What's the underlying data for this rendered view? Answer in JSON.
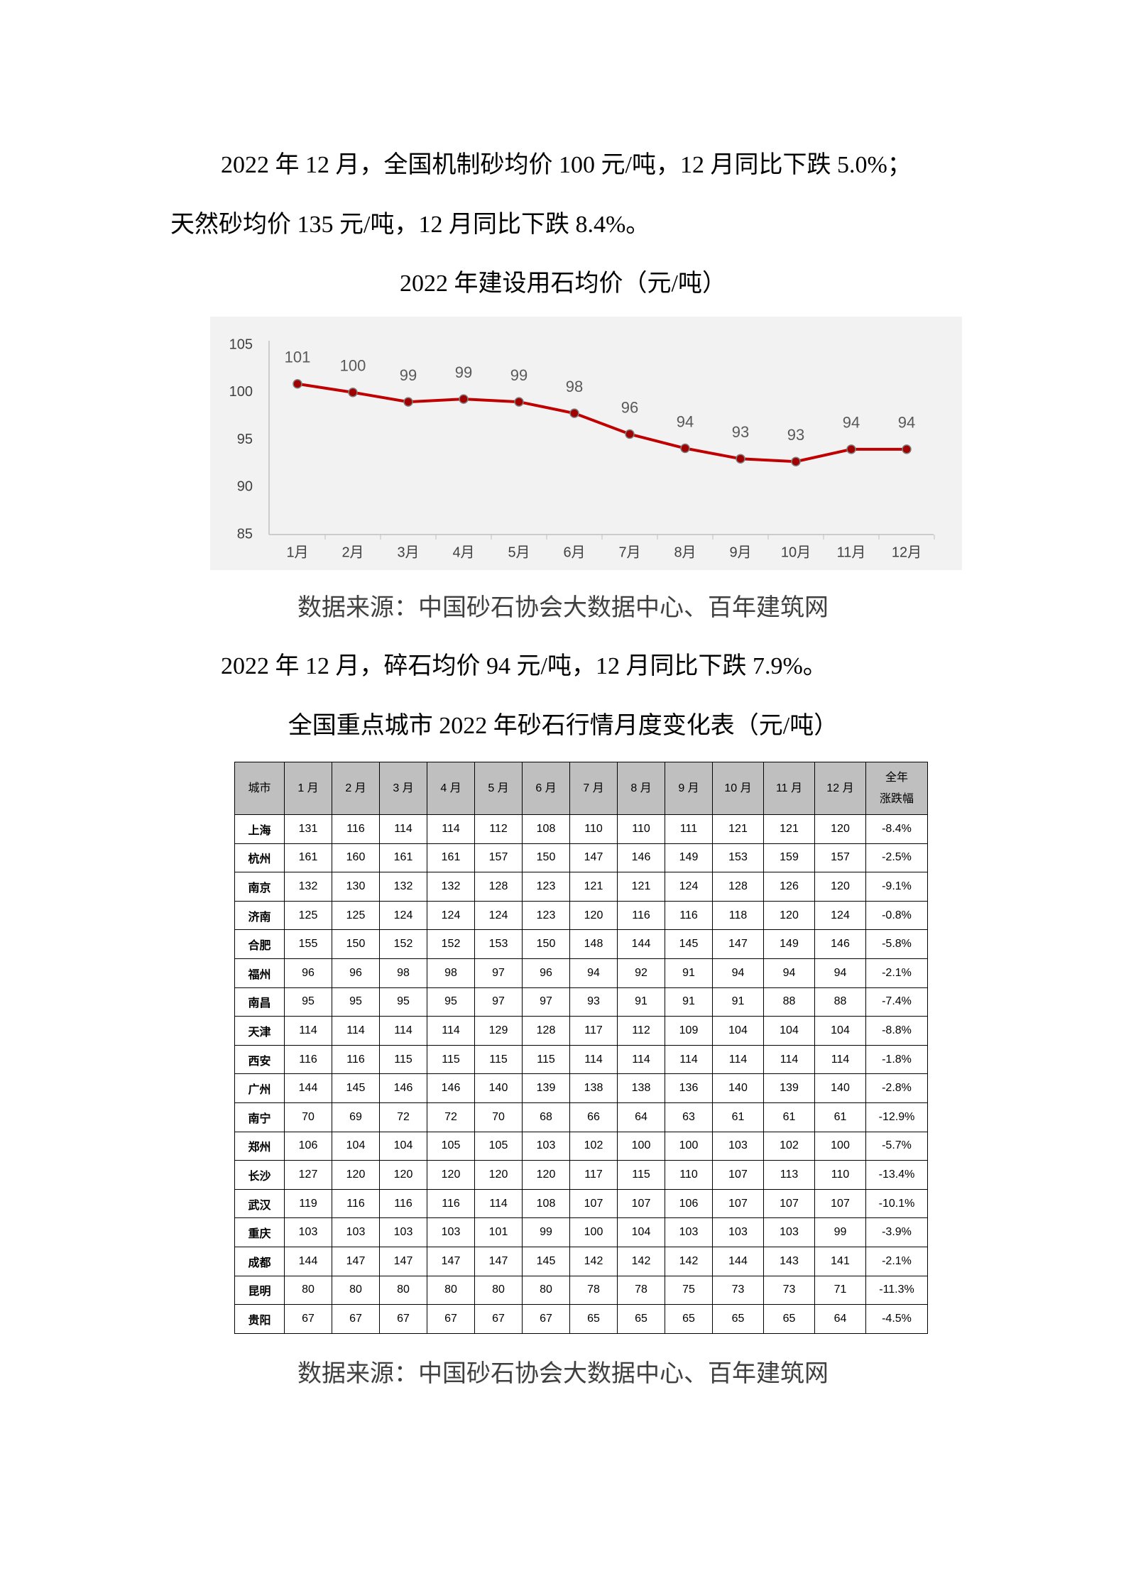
{
  "intro": [
    "2022 年 12 月，全国机制砂均价 100 元/吨，12 月同比下跌 5.0%；",
    "天然砂均价 135 元/吨，12 月同比下跌 8.4%。"
  ],
  "chart_data": {
    "type": "line",
    "title": "2022 年建设用石均价（元/吨）",
    "categories": [
      "1月",
      "2月",
      "3月",
      "4月",
      "5月",
      "6月",
      "7月",
      "8月",
      "9月",
      "10月",
      "11月",
      "12月"
    ],
    "values": [
      100.9,
      100,
      99,
      99.3,
      99,
      97.8,
      95.6,
      94.1,
      93,
      92.7,
      94,
      94
    ],
    "value_labels": [
      "101",
      "100",
      "99",
      "99",
      "99",
      "98",
      "96",
      "94",
      "93",
      "93",
      "94",
      "94"
    ],
    "color": "#c00000",
    "ylim": [
      85,
      105
    ],
    "yticks": [
      85,
      90,
      95,
      100,
      105
    ],
    "grid": false
  },
  "source_1": "数据来源：中国砂石协会大数据中心、百年建筑网",
  "paragraph_2": "2022 年 12 月，碎石均价 94 元/吨，12 月同比下跌 7.9%。",
  "table_title": "全国重点城市 2022 年砂石行情月度变化表（元/吨）",
  "table": {
    "header": [
      "城市",
      "1 月",
      "2 月",
      "3 月",
      "4 月",
      "5 月",
      "6 月",
      "7 月",
      "8 月",
      "9 月",
      "10 月",
      "11 月",
      "12 月",
      "全年\n涨跌幅"
    ],
    "rows": [
      [
        "上海",
        131,
        116,
        114,
        114,
        112,
        108,
        110,
        110,
        111,
        121,
        121,
        120,
        "-8.4%"
      ],
      [
        "杭州",
        161,
        160,
        161,
        161,
        157,
        150,
        147,
        146,
        149,
        153,
        159,
        157,
        "-2.5%"
      ],
      [
        "南京",
        132,
        130,
        132,
        132,
        128,
        123,
        121,
        121,
        124,
        128,
        126,
        120,
        "-9.1%"
      ],
      [
        "济南",
        125,
        125,
        124,
        124,
        124,
        123,
        120,
        116,
        116,
        118,
        120,
        124,
        "-0.8%"
      ],
      [
        "合肥",
        155,
        150,
        152,
        152,
        153,
        150,
        148,
        144,
        145,
        147,
        149,
        146,
        "-5.8%"
      ],
      [
        "福州",
        96,
        96,
        98,
        98,
        97,
        96,
        94,
        92,
        91,
        94,
        94,
        94,
        "-2.1%"
      ],
      [
        "南昌",
        95,
        95,
        95,
        95,
        97,
        97,
        93,
        91,
        91,
        91,
        88,
        88,
        "-7.4%"
      ],
      [
        "天津",
        114,
        114,
        114,
        114,
        129,
        128,
        117,
        112,
        109,
        104,
        104,
        104,
        "-8.8%"
      ],
      [
        "西安",
        116,
        116,
        115,
        115,
        115,
        115,
        114,
        114,
        114,
        114,
        114,
        114,
        "-1.8%"
      ],
      [
        "广州",
        144,
        145,
        146,
        146,
        140,
        139,
        138,
        138,
        136,
        140,
        139,
        140,
        "-2.8%"
      ],
      [
        "南宁",
        70,
        69,
        72,
        72,
        70,
        68,
        66,
        64,
        63,
        61,
        61,
        61,
        "-12.9%"
      ],
      [
        "郑州",
        106,
        104,
        104,
        105,
        105,
        103,
        102,
        100,
        100,
        103,
        102,
        100,
        "-5.7%"
      ],
      [
        "长沙",
        127,
        120,
        120,
        120,
        120,
        120,
        117,
        115,
        110,
        107,
        113,
        110,
        "-13.4%"
      ],
      [
        "武汉",
        119,
        116,
        116,
        116,
        114,
        108,
        107,
        107,
        106,
        107,
        107,
        107,
        "-10.1%"
      ],
      [
        "重庆",
        103,
        103,
        103,
        103,
        101,
        99,
        100,
        104,
        103,
        103,
        103,
        99,
        "-3.9%"
      ],
      [
        "成都",
        144,
        147,
        147,
        147,
        147,
        145,
        142,
        142,
        142,
        144,
        143,
        141,
        "-2.1%"
      ],
      [
        "昆明",
        80,
        80,
        80,
        80,
        80,
        80,
        78,
        78,
        75,
        73,
        73,
        71,
        "-11.3%"
      ],
      [
        "贵阳",
        67,
        67,
        67,
        67,
        67,
        67,
        65,
        65,
        65,
        65,
        65,
        64,
        "-4.5%"
      ]
    ]
  },
  "source_2": "数据来源：中国砂石协会大数据中心、百年建筑网"
}
